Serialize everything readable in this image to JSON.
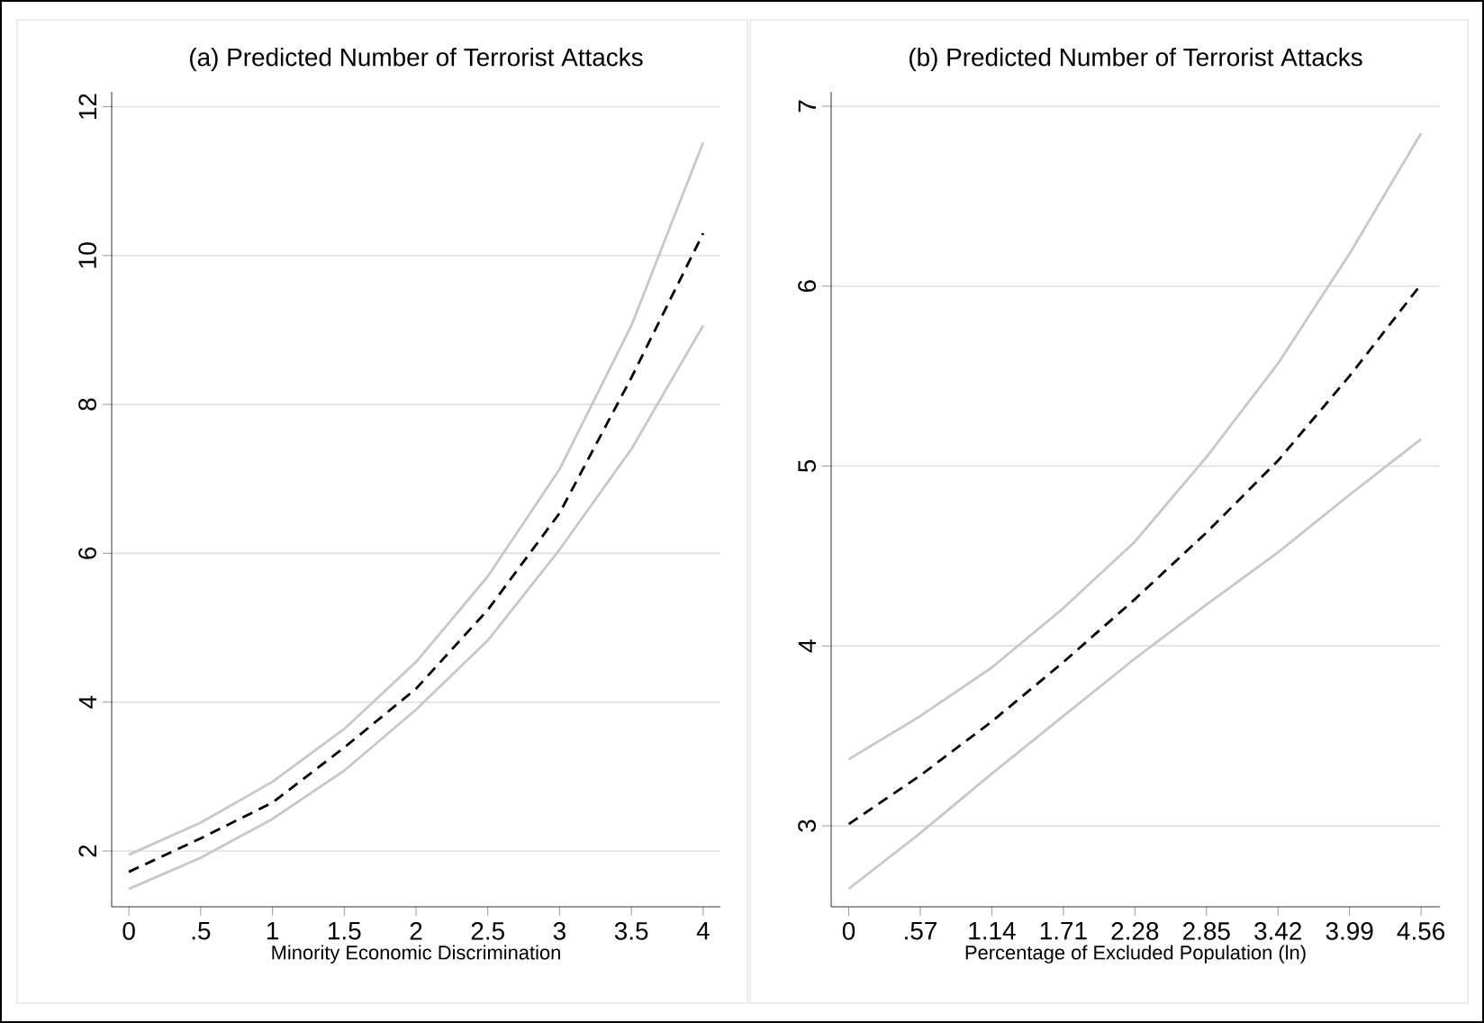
{
  "chart_data": [
    {
      "type": "line",
      "title": "(a) Predicted Number of Terrorist Attacks",
      "xlabel": "Minority Economic Discrimination",
      "x": [
        0,
        0.5,
        1,
        1.5,
        2,
        2.5,
        3,
        3.5,
        4
      ],
      "series": [
        {
          "color": "#c8c8c8",
          "line_style": "solid",
          "values": [
            1.95,
            2.38,
            2.93,
            3.64,
            4.54,
            5.69,
            7.13,
            9.06,
            11.52
          ]
        },
        {
          "color": "#000000",
          "line_style": "dashed",
          "values": [
            1.72,
            2.17,
            2.65,
            3.39,
            4.18,
            5.24,
            6.54,
            8.36,
            10.3
          ]
        },
        {
          "color": "#c8c8c8",
          "line_style": "solid",
          "values": [
            1.49,
            1.91,
            2.43,
            3.08,
            3.9,
            4.83,
            6.05,
            7.4,
            9.06
          ]
        }
      ],
      "xlim": [
        -0.12,
        4.12
      ],
      "ylim": [
        1.25,
        12.2
      ],
      "xticks": [
        0,
        {
          "value": 0.5,
          "label": ".5"
        },
        1,
        1.5,
        2,
        2.5,
        3,
        3.5,
        4
      ],
      "yticks": [
        2,
        4,
        6,
        8,
        10,
        12
      ],
      "grid": "y"
    },
    {
      "type": "line",
      "title": "(b) Predicted Number of Terrorist Attacks",
      "xlabel": "Percentage of Excluded Population (ln)",
      "x": [
        0,
        0.57,
        1.14,
        1.71,
        2.28,
        2.85,
        3.42,
        3.99,
        4.56
      ],
      "series": [
        {
          "color": "#c8c8c8",
          "line_style": "solid",
          "values": [
            3.37,
            3.61,
            3.88,
            4.21,
            4.58,
            5.05,
            5.57,
            6.18,
            6.85
          ]
        },
        {
          "color": "#000000",
          "line_style": "dashed",
          "values": [
            3.01,
            3.28,
            3.58,
            3.91,
            4.26,
            4.63,
            5.03,
            5.5,
            6.01
          ]
        },
        {
          "color": "#c8c8c8",
          "line_style": "solid",
          "values": [
            2.65,
            2.96,
            3.29,
            3.61,
            3.93,
            4.23,
            4.52,
            4.84,
            5.15
          ]
        }
      ],
      "xlim": [
        -0.14,
        4.71
      ],
      "ylim": [
        2.55,
        7.08
      ],
      "xticks": [
        0,
        {
          "value": 0.57,
          "label": ".57"
        },
        1.14,
        1.71,
        2.28,
        2.85,
        3.42,
        3.99,
        4.56
      ],
      "yticks": [
        3,
        4,
        5,
        6,
        7
      ],
      "grid": "y"
    }
  ]
}
